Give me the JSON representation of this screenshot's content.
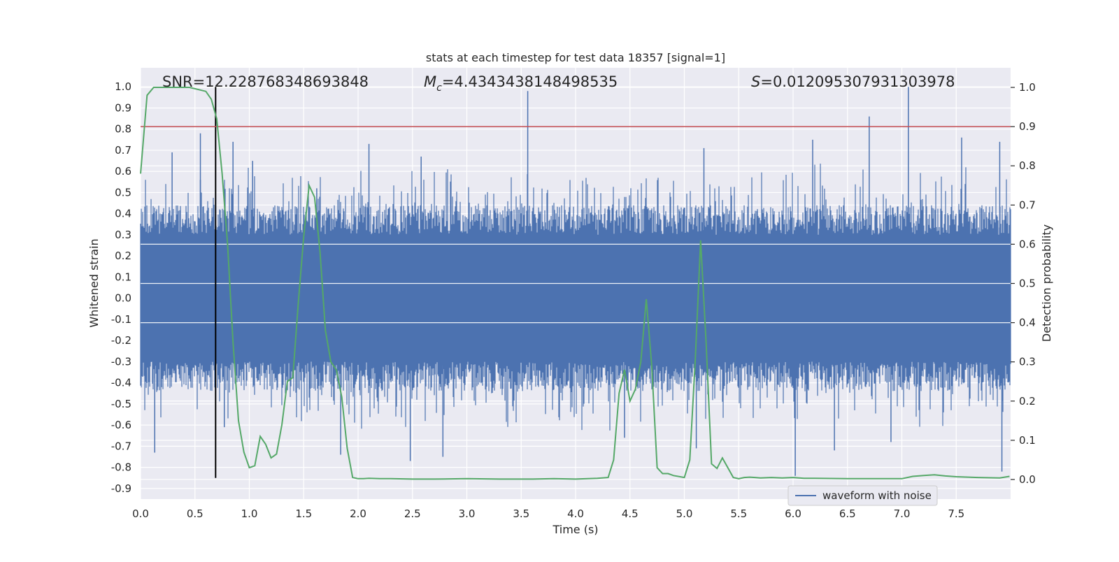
{
  "chart_data": {
    "type": "line",
    "title": "stats at each timestep for test data 18357 [signal=1]",
    "xlabel": "Time (s)",
    "ylabel_left": "Whitened strain",
    "ylabel_right": "Detection probability",
    "xlim": [
      0.0,
      8.0
    ],
    "ylim_left": [
      -0.95,
      1.09
    ],
    "ylim_right": [
      -0.05,
      1.05
    ],
    "xticks": [
      "0.0",
      "0.5",
      "1.0",
      "1.5",
      "2.0",
      "2.5",
      "3.0",
      "3.5",
      "4.0",
      "4.5",
      "5.0",
      "5.5",
      "6.0",
      "6.5",
      "7.0",
      "7.5"
    ],
    "xtick_values": [
      0.0,
      0.5,
      1.0,
      1.5,
      2.0,
      2.5,
      3.0,
      3.5,
      4.0,
      4.5,
      5.0,
      5.5,
      6.0,
      6.5,
      7.0,
      7.5
    ],
    "yticks_left": [
      "1.0",
      "0.9",
      "0.8",
      "0.7",
      "0.6",
      "0.5",
      "0.4",
      "0.3",
      "0.2",
      "0.1",
      "0.0",
      "-0.1",
      "-0.2",
      "-0.3",
      "-0.4",
      "-0.5",
      "-0.6",
      "-0.7",
      "-0.8",
      "-0.9"
    ],
    "ytick_values_left": [
      1.0,
      0.9,
      0.8,
      0.7,
      0.6,
      0.5,
      0.4,
      0.3,
      0.2,
      0.1,
      0.0,
      -0.1,
      -0.2,
      -0.3,
      -0.4,
      -0.5,
      -0.6,
      -0.7,
      -0.8,
      -0.9
    ],
    "yticks_right": [
      "1.0",
      "0.9",
      "0.8",
      "0.7",
      "0.6",
      "0.5",
      "0.4",
      "0.3",
      "0.2",
      "0.1",
      "0.0"
    ],
    "ytick_values_right": [
      1.0,
      0.9,
      0.8,
      0.7,
      0.6,
      0.5,
      0.4,
      0.3,
      0.2,
      0.1,
      0.0
    ],
    "grid": true,
    "legend_location": "lower-right",
    "annotations": {
      "snr": "SNR=12.228768348693848",
      "mc_symbol": "M",
      "mc_sub": "c",
      "mc_value": "=4.4343438148498535",
      "s_symbol": "S",
      "s_value": "=0.012095307931303978"
    },
    "series": [
      {
        "name": "waveform with noise",
        "axis": "left",
        "color": "#4c72b0",
        "envelope": {
          "dense_band": [
            -0.3,
            0.3
          ],
          "peaks": [
            {
              "x": 0.29,
              "y": 0.69
            },
            {
              "x": 0.55,
              "y": 0.56
            },
            {
              "x": 0.55,
              "y": 0.78
            },
            {
              "x": 0.85,
              "y": 0.74
            },
            {
              "x": 1.03,
              "y": 0.65
            },
            {
              "x": 1.62,
              "y": 0.52
            },
            {
              "x": 2.1,
              "y": 0.73
            },
            {
              "x": 2.58,
              "y": 0.67
            },
            {
              "x": 3.56,
              "y": 0.98
            },
            {
              "x": 5.18,
              "y": 0.71
            },
            {
              "x": 6.18,
              "y": 0.75
            },
            {
              "x": 6.7,
              "y": 0.86
            },
            {
              "x": 7.06,
              "y": 1.0
            },
            {
              "x": 7.55,
              "y": 0.76
            },
            {
              "x": 7.9,
              "y": 0.74
            }
          ],
          "troughs": [
            {
              "x": 0.13,
              "y": -0.73
            },
            {
              "x": 0.77,
              "y": -0.61
            },
            {
              "x": 1.84,
              "y": -0.74
            },
            {
              "x": 2.48,
              "y": -0.77
            },
            {
              "x": 2.78,
              "y": -0.75
            },
            {
              "x": 4.45,
              "y": -0.66
            },
            {
              "x": 5.11,
              "y": -0.71
            },
            {
              "x": 6.02,
              "y": -0.84
            },
            {
              "x": 6.38,
              "y": -0.72
            },
            {
              "x": 6.9,
              "y": -0.68
            },
            {
              "x": 7.92,
              "y": -0.82
            }
          ]
        }
      },
      {
        "name": "",
        "axis": "right",
        "color": "#55a868",
        "x": [
          0.0,
          0.06,
          0.12,
          0.2,
          0.3,
          0.45,
          0.6,
          0.65,
          0.7,
          0.75,
          0.8,
          0.85,
          0.9,
          0.95,
          1.0,
          1.05,
          1.1,
          1.15,
          1.2,
          1.25,
          1.3,
          1.35,
          1.4,
          1.45,
          1.5,
          1.55,
          1.6,
          1.65,
          1.7,
          1.75,
          1.8,
          1.85,
          1.9,
          1.95,
          2.0,
          2.05,
          2.1,
          2.2,
          2.3,
          2.5,
          2.7,
          3.0,
          3.3,
          3.6,
          3.8,
          4.0,
          4.2,
          4.3,
          4.35,
          4.4,
          4.45,
          4.5,
          4.55,
          4.6,
          4.65,
          4.7,
          4.75,
          4.8,
          4.85,
          4.9,
          5.0,
          5.05,
          5.1,
          5.15,
          5.2,
          5.25,
          5.3,
          5.35,
          5.4,
          5.45,
          5.5,
          5.55,
          5.6,
          5.65,
          5.7,
          5.8,
          5.9,
          6.0,
          6.1,
          6.2,
          6.5,
          6.8,
          7.0,
          7.1,
          7.2,
          7.3,
          7.4,
          7.5,
          7.7,
          7.9,
          7.99
        ],
        "y": [
          0.78,
          0.98,
          1.0,
          1.0,
          1.0,
          1.0,
          0.99,
          0.97,
          0.92,
          0.78,
          0.6,
          0.35,
          0.15,
          0.07,
          0.03,
          0.035,
          0.11,
          0.09,
          0.055,
          0.065,
          0.14,
          0.25,
          0.26,
          0.45,
          0.62,
          0.75,
          0.72,
          0.58,
          0.38,
          0.3,
          0.28,
          0.21,
          0.08,
          0.005,
          0.002,
          0.002,
          0.003,
          0.002,
          0.002,
          0.001,
          0.001,
          0.002,
          0.001,
          0.001,
          0.002,
          0.001,
          0.003,
          0.005,
          0.05,
          0.22,
          0.28,
          0.2,
          0.23,
          0.3,
          0.46,
          0.29,
          0.03,
          0.015,
          0.015,
          0.01,
          0.005,
          0.05,
          0.3,
          0.61,
          0.35,
          0.04,
          0.028,
          0.055,
          0.03,
          0.005,
          0.002,
          0.005,
          0.006,
          0.005,
          0.004,
          0.005,
          0.004,
          0.005,
          0.003,
          0.003,
          0.002,
          0.002,
          0.002,
          0.008,
          0.01,
          0.012,
          0.009,
          0.007,
          0.005,
          0.004,
          0.008
        ]
      }
    ],
    "reference_lines": [
      {
        "kind": "vertical",
        "x": 0.69,
        "from": -0.85,
        "to": 1.0,
        "axis": "left",
        "color": "#000000"
      },
      {
        "kind": "horizontal",
        "y": 0.9,
        "axis": "right",
        "color": "#c44e52"
      }
    ]
  },
  "legend": {
    "label": "waveform with noise"
  },
  "colors": {
    "background": "#eaeaf2",
    "grid": "#ffffff",
    "waveform": "#4c72b0",
    "probability": "#55a868",
    "threshold": "#c44e52",
    "marker": "#000000"
  }
}
